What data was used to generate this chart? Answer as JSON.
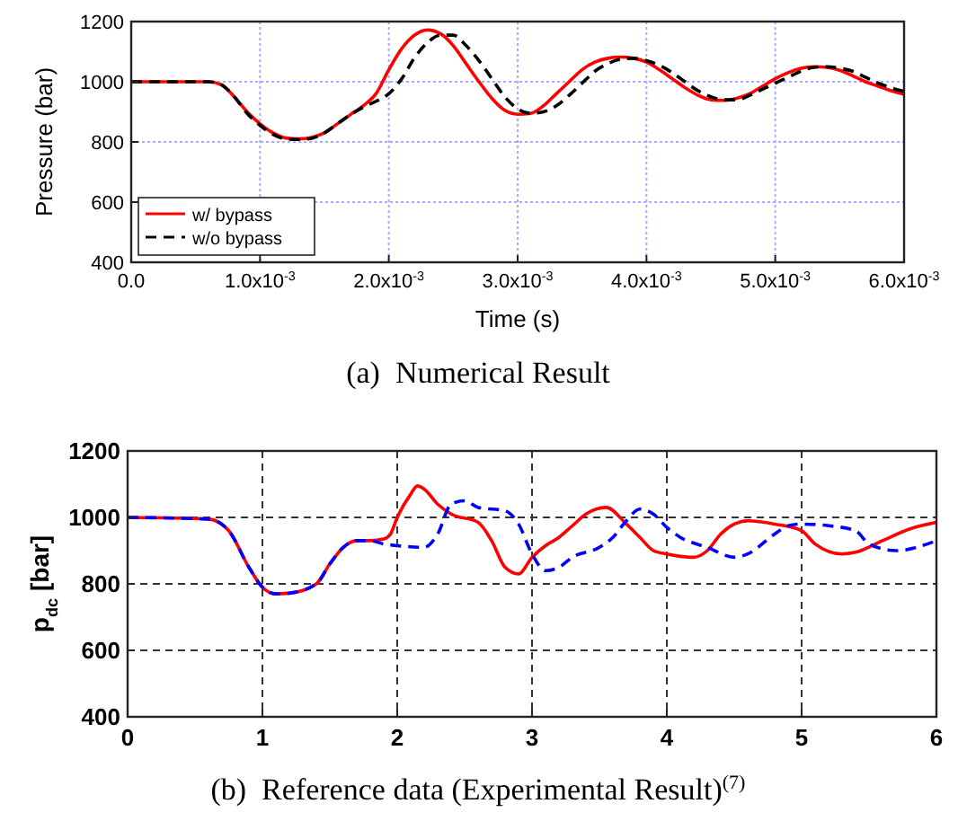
{
  "chart_data": [
    {
      "type": "line",
      "title": "(a)  Numerical Result",
      "xlabel": "Time (s)",
      "ylabel": "Pressure (bar)",
      "xlim": [
        0,
        0.006
      ],
      "ylim": [
        400,
        1200
      ],
      "xticks": [
        {
          "value": 0,
          "label": "0.0"
        },
        {
          "value": 0.001,
          "label": "1.0x10$^{-3}$"
        },
        {
          "value": 0.002,
          "label": "2.0x10$^{-3}$"
        },
        {
          "value": 0.003,
          "label": "3.0x10$^{-3}$"
        },
        {
          "value": 0.004,
          "label": "4.0x10$^{-3}$"
        },
        {
          "value": 0.005,
          "label": "5.0x10$^{-3}$"
        },
        {
          "value": 0.006,
          "label": "6.0x10$^{-3}$"
        }
      ],
      "yticks": [
        400,
        600,
        800,
        1000,
        1200
      ],
      "grid": true,
      "legend": "bottom left",
      "series": [
        {
          "name": "w/ bypass",
          "color": "#ff0000",
          "line_style": "solid",
          "x": [
            0,
            0.0006,
            0.0007,
            0.0008,
            0.0009,
            0.001,
            0.0011,
            0.0012,
            0.0013,
            0.0014,
            0.0015,
            0.0016,
            0.0017,
            0.0018,
            0.0019,
            0.002,
            0.0021,
            0.0022,
            0.0023,
            0.0024,
            0.0025,
            0.0026,
            0.0027,
            0.0028,
            0.0029,
            0.003,
            0.0031,
            0.0032,
            0.0033,
            0.0034,
            0.0035,
            0.0036,
            0.0037,
            0.0038,
            0.0039,
            0.004,
            0.0041,
            0.0042,
            0.0043,
            0.0044,
            0.0045,
            0.0046,
            0.0047,
            0.0048,
            0.0049,
            0.005,
            0.0051,
            0.0052,
            0.0053,
            0.0054,
            0.0055,
            0.0056,
            0.0057,
            0.0058,
            0.0059,
            0.006
          ],
          "values": [
            1000,
            1000,
            990,
            950,
            900,
            860,
            830,
            813,
            810,
            815,
            830,
            860,
            890,
            920,
            960,
            1040,
            1110,
            1155,
            1172,
            1160,
            1120,
            1060,
            1000,
            945,
            905,
            892,
            895,
            920,
            960,
            1000,
            1040,
            1065,
            1078,
            1082,
            1078,
            1065,
            1040,
            1010,
            980,
            955,
            940,
            938,
            945,
            960,
            985,
            1010,
            1030,
            1045,
            1050,
            1048,
            1038,
            1020,
            1000,
            985,
            970,
            958
          ]
        },
        {
          "name": "w/o bypass",
          "color": "#000000",
          "line_style": "dashed",
          "x": [
            0,
            0.0006,
            0.0007,
            0.0008,
            0.0009,
            0.001,
            0.0011,
            0.0012,
            0.0013,
            0.0014,
            0.0015,
            0.0016,
            0.0017,
            0.0018,
            0.0019,
            0.002,
            0.0021,
            0.0022,
            0.0023,
            0.0024,
            0.0025,
            0.0026,
            0.0027,
            0.0028,
            0.0029,
            0.003,
            0.0031,
            0.0032,
            0.0033,
            0.0034,
            0.0035,
            0.0036,
            0.0037,
            0.0038,
            0.0039,
            0.004,
            0.0041,
            0.0042,
            0.0043,
            0.0044,
            0.0045,
            0.0046,
            0.0047,
            0.0048,
            0.0049,
            0.005,
            0.0051,
            0.0052,
            0.0053,
            0.0054,
            0.0055,
            0.0056,
            0.0057,
            0.0058,
            0.0059,
            0.006
          ],
          "values": [
            1000,
            1000,
            990,
            950,
            895,
            855,
            825,
            810,
            808,
            812,
            830,
            860,
            890,
            915,
            935,
            960,
            1010,
            1080,
            1130,
            1155,
            1155,
            1120,
            1070,
            1010,
            950,
            910,
            895,
            900,
            920,
            955,
            995,
            1035,
            1060,
            1075,
            1078,
            1070,
            1055,
            1030,
            1000,
            970,
            950,
            940,
            940,
            955,
            975,
            995,
            1015,
            1035,
            1048,
            1050,
            1045,
            1035,
            1015,
            995,
            980,
            968
          ]
        }
      ]
    },
    {
      "type": "line",
      "title": "(b)  Reference data (Experimental Result)$^{(7)}$",
      "ylabel": "p$_{dc}$ [bar]",
      "xlim": [
        0,
        6
      ],
      "ylim": [
        400,
        1200
      ],
      "xticks": [
        0,
        1,
        2,
        3,
        4,
        5,
        6
      ],
      "yticks": [
        400,
        600,
        800,
        1000,
        1200
      ],
      "grid": true,
      "series": [
        {
          "color": "#ff0000",
          "line_style": "solid",
          "x": [
            0,
            0.6,
            0.75,
            0.9,
            1.0,
            1.1,
            1.2,
            1.4,
            1.5,
            1.6,
            1.7,
            1.8,
            1.9,
            1.95,
            2.0,
            2.1,
            2.15,
            2.2,
            2.3,
            2.4,
            2.6,
            2.7,
            2.8,
            2.9,
            3.0,
            3.1,
            3.2,
            3.3,
            3.4,
            3.55,
            3.7,
            3.8,
            3.9,
            4.0,
            4.2,
            4.3,
            4.4,
            4.5,
            4.6,
            4.8,
            5.0,
            5.1,
            5.3,
            5.4,
            5.6,
            5.8,
            6.0
          ],
          "values": [
            1000,
            995,
            960,
            850,
            790,
            770,
            772,
            800,
            860,
            910,
            930,
            930,
            935,
            950,
            1000,
            1070,
            1095,
            1085,
            1040,
            1010,
            985,
            930,
            850,
            830,
            880,
            915,
            940,
            975,
            1010,
            1030,
            980,
            940,
            900,
            890,
            880,
            900,
            950,
            980,
            990,
            980,
            960,
            920,
            890,
            895,
            930,
            965,
            985
          ]
        },
        {
          "color": "#0000ff",
          "line_style": "dashed",
          "x": [
            0,
            0.6,
            0.75,
            0.9,
            1.0,
            1.1,
            1.2,
            1.4,
            1.5,
            1.6,
            1.7,
            1.8,
            1.9,
            2.0,
            2.2,
            2.3,
            2.4,
            2.5,
            2.6,
            2.8,
            2.9,
            3.0,
            3.1,
            3.2,
            3.3,
            3.5,
            3.6,
            3.7,
            3.8,
            3.9,
            4.0,
            4.1,
            4.3,
            4.5,
            4.6,
            4.8,
            4.9,
            5.0,
            5.2,
            5.4,
            5.5,
            5.7,
            6.0
          ],
          "values": [
            1000,
            995,
            960,
            850,
            790,
            770,
            772,
            800,
            860,
            910,
            930,
            930,
            920,
            915,
            910,
            950,
            1040,
            1050,
            1030,
            1020,
            980,
            890,
            840,
            850,
            880,
            910,
            940,
            990,
            1025,
            1010,
            970,
            940,
            910,
            880,
            890,
            950,
            975,
            980,
            975,
            960,
            920,
            900,
            930
          ]
        }
      ]
    }
  ]
}
